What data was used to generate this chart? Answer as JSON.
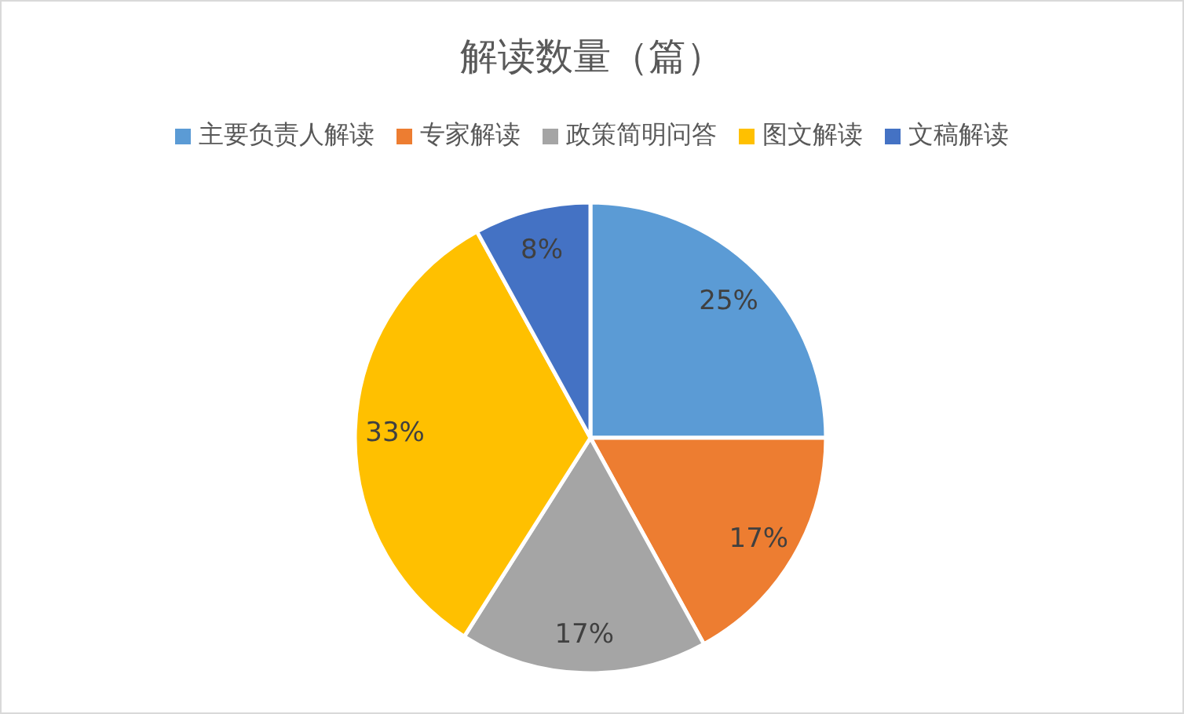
{
  "chart_data": {
    "type": "pie",
    "title": "解读数量（篇）",
    "categories": [
      "主要负责人解读",
      "专家解读",
      "政策简明问答",
      "图文解读",
      "文稿解读"
    ],
    "values": [
      25,
      17,
      17,
      33,
      8
    ],
    "colors": [
      "#5b9bd5",
      "#ed7d31",
      "#a5a5a5",
      "#ffc000",
      "#4472c4"
    ],
    "value_labels": [
      "25%",
      "17%",
      "17%",
      "33%",
      "8%"
    ],
    "legend": "top"
  }
}
